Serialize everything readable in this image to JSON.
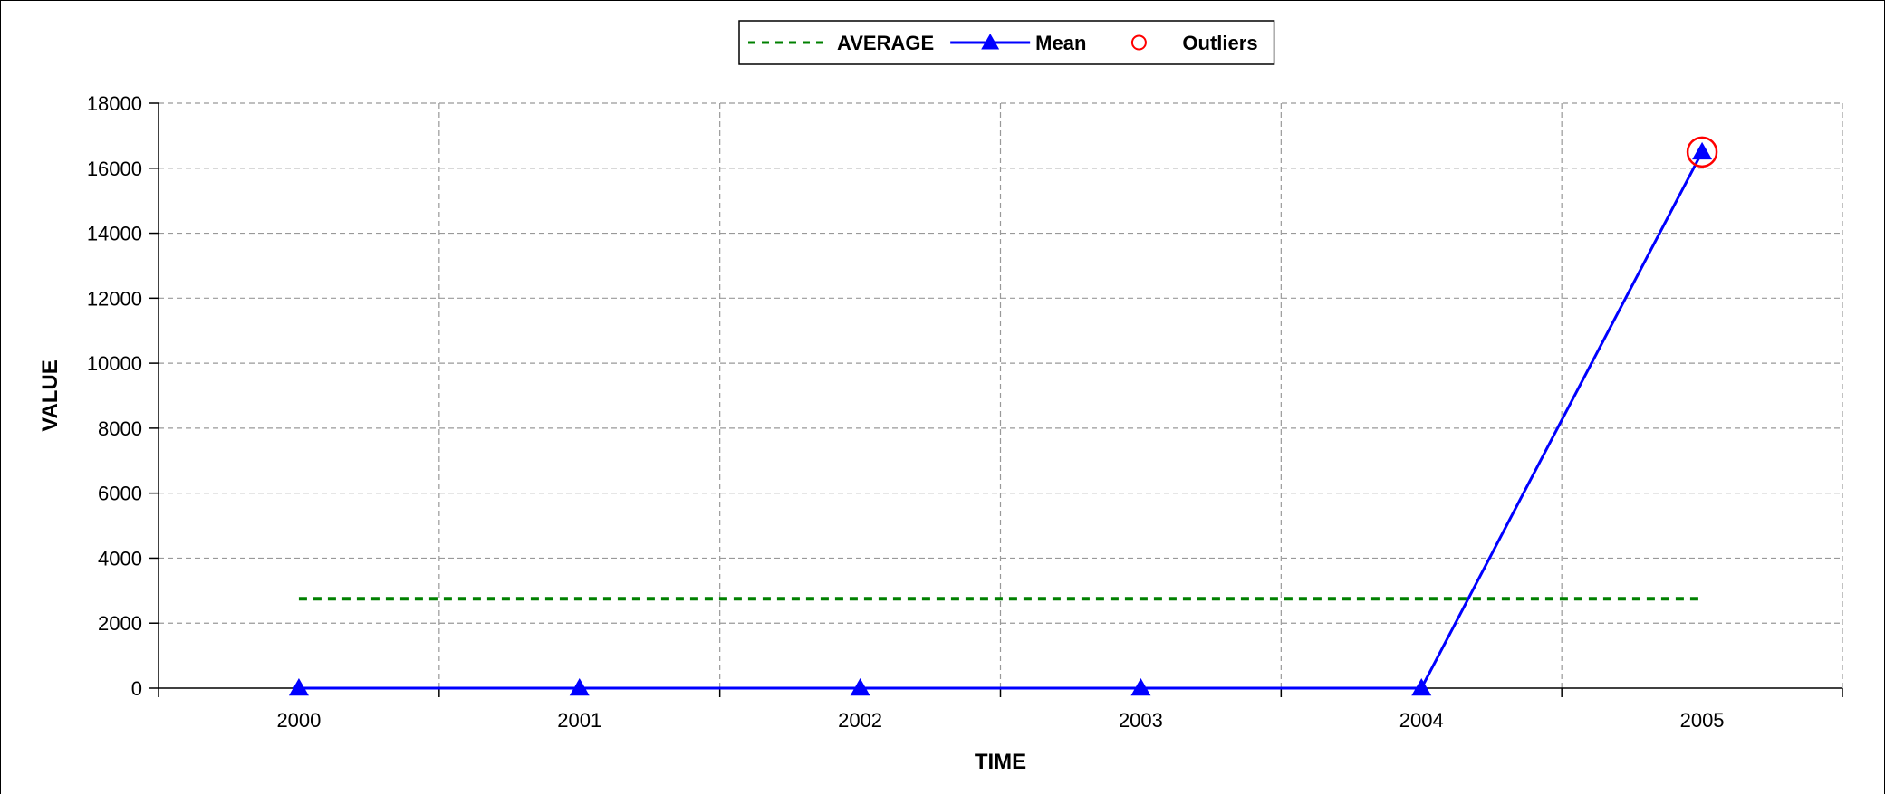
{
  "chart_data": {
    "type": "line",
    "xlabel": "TIME",
    "ylabel": "VALUE",
    "categories": [
      "2000",
      "2001",
      "2002",
      "2003",
      "2004",
      "2005"
    ],
    "ylim": [
      0,
      18000
    ],
    "yticks": [
      0,
      2000,
      4000,
      6000,
      8000,
      10000,
      12000,
      14000,
      16000,
      18000
    ],
    "grid": true,
    "legend_position": "top-center",
    "series": [
      {
        "name": "AVERAGE",
        "style": "dashed",
        "color": "#008000",
        "values": [
          2750,
          2750,
          2750,
          2750,
          2750,
          2750
        ]
      },
      {
        "name": "Mean",
        "style": "solid-triangle",
        "color": "#0000FF",
        "values": [
          0,
          0,
          0,
          0,
          0,
          16500
        ]
      },
      {
        "name": "Outliers",
        "style": "open-circle",
        "color": "#FF0000",
        "points": [
          {
            "x": "2005",
            "y": 16500
          }
        ]
      }
    ]
  }
}
